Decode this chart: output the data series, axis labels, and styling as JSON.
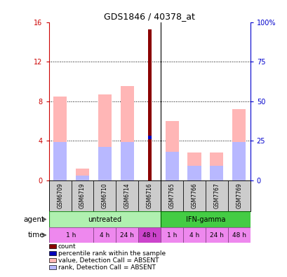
{
  "title": "GDS1846 / 40378_at",
  "samples": [
    "GSM6709",
    "GSM6719",
    "GSM6710",
    "GSM6714",
    "GSM6716",
    "GSM7765",
    "GSM7766",
    "GSM7767",
    "GSM7769"
  ],
  "value_absent": [
    8.5,
    1.2,
    8.7,
    9.5,
    null,
    6.0,
    2.8,
    2.8,
    7.2
  ],
  "rank_absent_pct": [
    24,
    3,
    21,
    24,
    null,
    18,
    9,
    9,
    24
  ],
  "count_value": [
    null,
    null,
    null,
    null,
    15.3,
    null,
    null,
    null,
    null
  ],
  "percentile_value_pct": [
    null,
    null,
    null,
    null,
    27,
    null,
    null,
    null,
    null
  ],
  "ylim_left": [
    0,
    16
  ],
  "ylim_right": [
    0,
    100
  ],
  "yticks_left": [
    0,
    4,
    8,
    12,
    16
  ],
  "yticks_right": [
    0,
    25,
    50,
    75,
    100
  ],
  "yticklabels_right": [
    "0",
    "25",
    "50",
    "75",
    "100%"
  ],
  "bar_width": 0.6,
  "color_value_absent": "#ffb6b6",
  "color_rank_absent": "#b8b8ff",
  "color_count": "#8b0000",
  "color_percentile": "#0000bb",
  "background_color": "#ffffff",
  "axis_left_color": "#cc0000",
  "axis_right_color": "#0000cc",
  "untreated_light": "#b0f0b0",
  "untreated_dark": "#44cc44",
  "time_light": "#ee88ee",
  "time_dark": "#cc44cc",
  "sample_bg": "#cccccc",
  "time_spans": [
    {
      "start": 0,
      "end": 1,
      "label": "1 h",
      "dark": false
    },
    {
      "start": 2,
      "end": 2,
      "label": "4 h",
      "dark": false
    },
    {
      "start": 3,
      "end": 3,
      "label": "24 h",
      "dark": false
    },
    {
      "start": 4,
      "end": 4,
      "label": "48 h",
      "dark": true
    },
    {
      "start": 5,
      "end": 5,
      "label": "1 h",
      "dark": false
    },
    {
      "start": 6,
      "end": 6,
      "label": "4 h",
      "dark": false
    },
    {
      "start": 7,
      "end": 7,
      "label": "24 h",
      "dark": false
    },
    {
      "start": 8,
      "end": 8,
      "label": "48 h",
      "dark": false
    }
  ]
}
